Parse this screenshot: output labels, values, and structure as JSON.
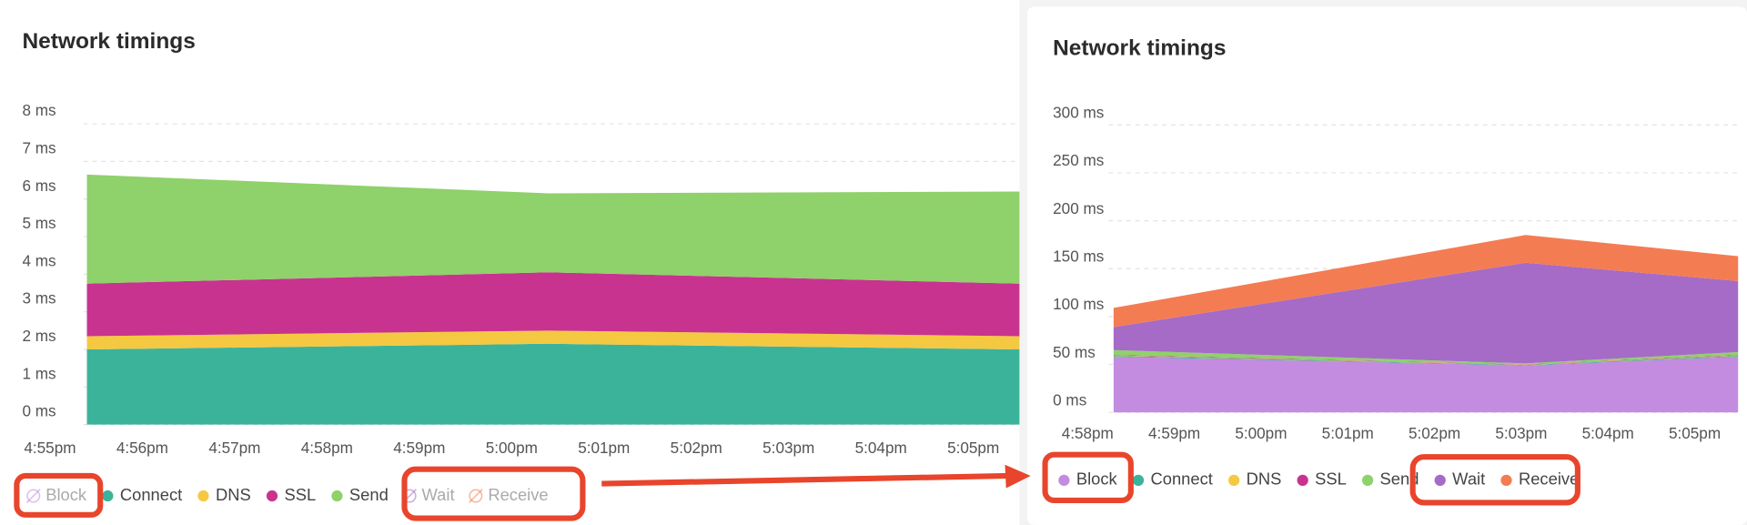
{
  "chart_data": [
    {
      "type": "area",
      "stacked": true,
      "title": "Network timings",
      "grid": true,
      "legend": "bottom",
      "x": [
        1015.4,
        1020.4,
        1025.5
      ],
      "xlim": [
        1014.7,
        1025.5
      ],
      "xticks": [
        {
          "value": 1015,
          "label": "4:55pm"
        },
        {
          "value": 1016,
          "label": "4:56pm"
        },
        {
          "value": 1017,
          "label": "4:57pm"
        },
        {
          "value": 1018,
          "label": "4:58pm"
        },
        {
          "value": 1019,
          "label": "4:59pm"
        },
        {
          "value": 1020,
          "label": "5:00pm"
        },
        {
          "value": 1021,
          "label": "5:01pm"
        },
        {
          "value": 1022,
          "label": "5:02pm"
        },
        {
          "value": 1023,
          "label": "5:03pm"
        },
        {
          "value": 1024,
          "label": "5:04pm"
        },
        {
          "value": 1025,
          "label": "5:05pm"
        }
      ],
      "ylim": [
        0,
        8
      ],
      "yticks": [
        {
          "value": 0,
          "label": "0 ms"
        },
        {
          "value": 1,
          "label": "1 ms"
        },
        {
          "value": 2,
          "label": "2 ms"
        },
        {
          "value": 3,
          "label": "3 ms"
        },
        {
          "value": 4,
          "label": "4 ms"
        },
        {
          "value": 5,
          "label": "5 ms"
        },
        {
          "value": 6,
          "label": "6 ms"
        },
        {
          "value": 7,
          "label": "7 ms"
        },
        {
          "value": 8,
          "label": "8 ms"
        }
      ],
      "series": [
        {
          "name": "Block",
          "color": "#c38ce0",
          "hidden": true
        },
        {
          "name": "Connect",
          "color": "#3bb39b",
          "values": [
            2.0,
            2.15,
            2.0
          ]
        },
        {
          "name": "DNS",
          "color": "#f5c842",
          "values": [
            0.35,
            0.35,
            0.35
          ]
        },
        {
          "name": "SSL",
          "color": "#c8338f",
          "values": [
            1.4,
            1.55,
            1.4
          ]
        },
        {
          "name": "Send",
          "color": "#8fd16a",
          "values": [
            2.9,
            2.1,
            2.45
          ]
        },
        {
          "name": "Wait",
          "color": "#a56bc6",
          "hidden": true
        },
        {
          "name": "Receive",
          "color": "#f47c52",
          "hidden": true
        }
      ]
    },
    {
      "type": "area",
      "stacked": true,
      "title": "Network timings",
      "grid": true,
      "legend": "bottom",
      "x": [
        1018.3,
        1023.05,
        1025.5
      ],
      "xlim": [
        1017.6,
        1025.5
      ],
      "xticks": [
        {
          "value": 1018,
          "label": "4:58pm"
        },
        {
          "value": 1019,
          "label": "4:59pm"
        },
        {
          "value": 1020,
          "label": "5:00pm"
        },
        {
          "value": 1021,
          "label": "5:01pm"
        },
        {
          "value": 1022,
          "label": "5:02pm"
        },
        {
          "value": 1023,
          "label": "5:03pm"
        },
        {
          "value": 1024,
          "label": "5:04pm"
        },
        {
          "value": 1025,
          "label": "5:05pm"
        }
      ],
      "ylim": [
        0,
        300
      ],
      "yticks": [
        {
          "value": 0,
          "label": "0 ms"
        },
        {
          "value": 50,
          "label": "50 ms"
        },
        {
          "value": 100,
          "label": "100 ms"
        },
        {
          "value": 150,
          "label": "150 ms"
        },
        {
          "value": 200,
          "label": "200 ms"
        },
        {
          "value": 250,
          "label": "250 ms"
        },
        {
          "value": 300,
          "label": "300 ms"
        }
      ],
      "series": [
        {
          "name": "Block",
          "color": "#c38ce0",
          "values": [
            58,
            49,
            58
          ]
        },
        {
          "name": "Connect",
          "color": "#3bb39b",
          "values": [
            1,
            0.5,
            1
          ]
        },
        {
          "name": "DNS",
          "color": "#f5c842",
          "values": [
            0.5,
            0.3,
            0.5
          ]
        },
        {
          "name": "SSL",
          "color": "#c8338f",
          "values": [
            0.5,
            0.3,
            0.5
          ]
        },
        {
          "name": "Send",
          "color": "#8fd16a",
          "values": [
            5,
            1,
            3
          ]
        },
        {
          "name": "Wait",
          "color": "#a56bc6",
          "values": [
            24,
            105,
            74
          ]
        },
        {
          "name": "Receive",
          "color": "#f47c52",
          "values": [
            20,
            29,
            26
          ]
        }
      ]
    }
  ]
}
